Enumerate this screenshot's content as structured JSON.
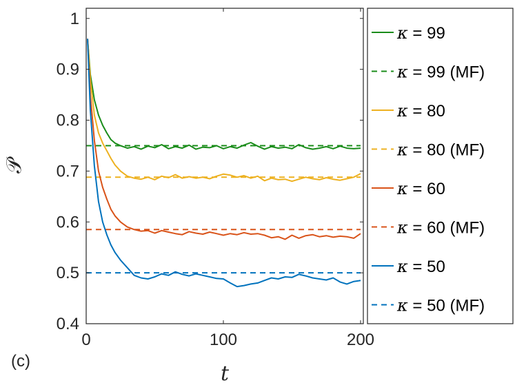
{
  "chart_data": {
    "type": "line",
    "panel_label": "(c)",
    "xlabel": "t",
    "ylabel": "𝒫",
    "xlim": [
      0,
      202
    ],
    "ylim": [
      0.4,
      1.02
    ],
    "xticks": [
      0,
      100,
      200
    ],
    "xtick_labels": [
      "0",
      "100",
      "200"
    ],
    "yticks": [
      0.4,
      0.5,
      0.6,
      0.7,
      0.8,
      0.9,
      1.0
    ],
    "ytick_labels": [
      "0.4",
      "0.5",
      "0.6",
      "0.7",
      "0.8",
      "0.9",
      "1"
    ],
    "grid": false,
    "legend_position": "outside-right",
    "series": [
      {
        "legend_symbol": "κ",
        "legend_text": "= 99",
        "color": "#1a8c1a",
        "style": "solid",
        "x": [
          1,
          3,
          6,
          9,
          12,
          15,
          18,
          21,
          25,
          30,
          35,
          40,
          45,
          50,
          55,
          60,
          65,
          70,
          75,
          80,
          85,
          90,
          95,
          100,
          105,
          110,
          115,
          120,
          125,
          130,
          135,
          140,
          145,
          150,
          155,
          160,
          165,
          170,
          175,
          180,
          185,
          190,
          195,
          200
        ],
        "y": [
          0.96,
          0.89,
          0.84,
          0.81,
          0.79,
          0.775,
          0.762,
          0.755,
          0.75,
          0.745,
          0.748,
          0.743,
          0.749,
          0.746,
          0.752,
          0.744,
          0.748,
          0.745,
          0.751,
          0.743,
          0.747,
          0.746,
          0.75,
          0.744,
          0.748,
          0.745,
          0.751,
          0.756,
          0.749,
          0.743,
          0.748,
          0.745,
          0.747,
          0.744,
          0.752,
          0.746,
          0.743,
          0.745,
          0.748,
          0.744,
          0.749,
          0.745,
          0.744,
          0.745
        ]
      },
      {
        "legend_symbol": "κ",
        "legend_text": "= 99 (MF)",
        "color": "#1a8c1a",
        "style": "dashed",
        "x": [
          0,
          200
        ],
        "y": [
          0.75,
          0.75
        ]
      },
      {
        "legend_symbol": "κ",
        "legend_text": "= 80",
        "color": "#edb120",
        "style": "solid",
        "x": [
          1,
          3,
          6,
          9,
          12,
          15,
          18,
          21,
          25,
          30,
          35,
          40,
          45,
          50,
          55,
          60,
          65,
          70,
          75,
          80,
          85,
          90,
          95,
          100,
          105,
          110,
          115,
          120,
          125,
          130,
          135,
          140,
          145,
          150,
          155,
          160,
          165,
          170,
          175,
          180,
          185,
          190,
          195,
          200
        ],
        "y": [
          0.96,
          0.88,
          0.81,
          0.775,
          0.755,
          0.74,
          0.725,
          0.712,
          0.7,
          0.69,
          0.686,
          0.684,
          0.688,
          0.683,
          0.69,
          0.687,
          0.693,
          0.686,
          0.689,
          0.686,
          0.688,
          0.685,
          0.69,
          0.694,
          0.692,
          0.688,
          0.691,
          0.686,
          0.69,
          0.681,
          0.686,
          0.683,
          0.684,
          0.68,
          0.684,
          0.688,
          0.685,
          0.683,
          0.687,
          0.684,
          0.682,
          0.685,
          0.688,
          0.695
        ]
      },
      {
        "legend_symbol": "κ",
        "legend_text": "= 80 (MF)",
        "color": "#edb120",
        "style": "dashed",
        "x": [
          0,
          200
        ],
        "y": [
          0.688,
          0.688
        ]
      },
      {
        "legend_symbol": "κ",
        "legend_text": "= 60",
        "color": "#d95319",
        "style": "solid",
        "x": [
          1,
          3,
          6,
          9,
          12,
          15,
          18,
          21,
          25,
          30,
          35,
          40,
          45,
          50,
          55,
          60,
          65,
          70,
          75,
          80,
          85,
          90,
          95,
          100,
          105,
          110,
          115,
          120,
          125,
          130,
          135,
          140,
          145,
          150,
          155,
          160,
          165,
          170,
          175,
          180,
          185,
          190,
          195,
          200
        ],
        "y": [
          0.96,
          0.85,
          0.76,
          0.7,
          0.668,
          0.645,
          0.625,
          0.612,
          0.6,
          0.59,
          0.585,
          0.582,
          0.583,
          0.578,
          0.583,
          0.58,
          0.577,
          0.575,
          0.581,
          0.578,
          0.576,
          0.58,
          0.577,
          0.574,
          0.577,
          0.575,
          0.579,
          0.576,
          0.577,
          0.574,
          0.569,
          0.571,
          0.566,
          0.574,
          0.568,
          0.573,
          0.575,
          0.571,
          0.573,
          0.57,
          0.572,
          0.571,
          0.568,
          0.577
        ]
      },
      {
        "legend_symbol": "κ",
        "legend_text": "= 60 (MF)",
        "color": "#d95319",
        "style": "dashed",
        "x": [
          0,
          200
        ],
        "y": [
          0.585,
          0.585
        ]
      },
      {
        "legend_symbol": "κ",
        "legend_text": "= 50",
        "color": "#0072bd",
        "style": "solid",
        "x": [
          1,
          3,
          6,
          9,
          12,
          15,
          18,
          21,
          25,
          30,
          35,
          40,
          45,
          50,
          55,
          60,
          65,
          70,
          75,
          80,
          85,
          90,
          95,
          100,
          105,
          110,
          115,
          120,
          125,
          130,
          135,
          140,
          145,
          150,
          155,
          160,
          165,
          170,
          175,
          180,
          185,
          190,
          195,
          200
        ],
        "y": [
          0.96,
          0.82,
          0.71,
          0.64,
          0.6,
          0.575,
          0.555,
          0.54,
          0.525,
          0.51,
          0.495,
          0.49,
          0.488,
          0.492,
          0.498,
          0.495,
          0.502,
          0.497,
          0.494,
          0.498,
          0.495,
          0.492,
          0.489,
          0.488,
          0.48,
          0.473,
          0.475,
          0.478,
          0.48,
          0.485,
          0.49,
          0.488,
          0.492,
          0.491,
          0.497,
          0.494,
          0.49,
          0.488,
          0.486,
          0.49,
          0.482,
          0.478,
          0.483,
          0.485
        ]
      },
      {
        "legend_symbol": "κ",
        "legend_text": "= 50 (MF)",
        "color": "#0072bd",
        "style": "dashed",
        "x": [
          0,
          200
        ],
        "y": [
          0.5,
          0.5
        ]
      }
    ]
  }
}
